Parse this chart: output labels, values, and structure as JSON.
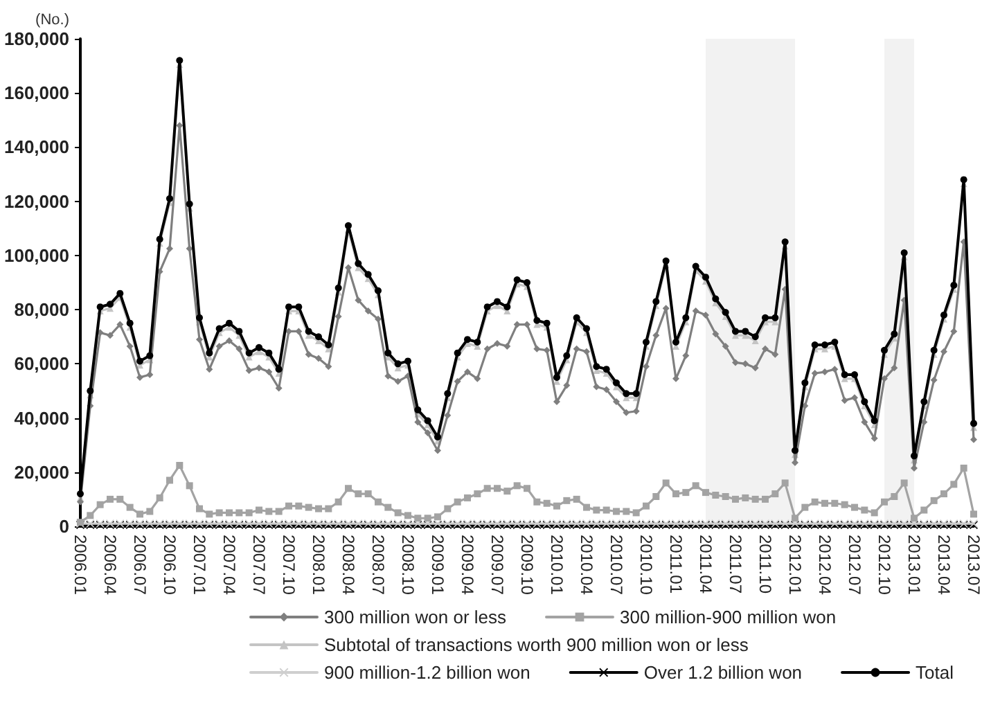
{
  "chart_data": {
    "type": "line",
    "ylabel": "(No.)",
    "categories": [
      "2006.01",
      null,
      null,
      "2006.04",
      null,
      null,
      "2006.07",
      null,
      null,
      "2006.10",
      null,
      null,
      "2007.01",
      null,
      null,
      "2007.04",
      null,
      null,
      "2007.07",
      null,
      null,
      "2007.10",
      null,
      null,
      "2008.01",
      null,
      null,
      "2008.04",
      null,
      null,
      "2008.07",
      null,
      null,
      "2008.10",
      null,
      null,
      "2009.01",
      null,
      null,
      "2009.04",
      null,
      null,
      "2009.07",
      null,
      null,
      "2009.10",
      null,
      null,
      "2010.01",
      null,
      null,
      "2010.04",
      null,
      null,
      "2010.07",
      null,
      null,
      "2010.10",
      null,
      null,
      "2011.01",
      null,
      null,
      "2011.04",
      null,
      null,
      "2011.07",
      null,
      null,
      "2011.10",
      null,
      null,
      "2012.01",
      null,
      null,
      "2012.04",
      null,
      null,
      "2012.07",
      null,
      null,
      "2012.10",
      null,
      null,
      "2013.01",
      null,
      null,
      "2013.04",
      null,
      null,
      "2013.07"
    ],
    "series": [
      {
        "name": "300 million won or less",
        "color": "#7f7f7f",
        "marker": "diamond",
        "values": [
          9000,
          44500,
          71500,
          70500,
          74500,
          66500,
          55000,
          56000,
          94000,
          102500,
          148000,
          102500,
          69000,
          58000,
          66500,
          68500,
          65500,
          57500,
          58500,
          57000,
          51000,
          72000,
          72000,
          63500,
          62000,
          59000,
          77500,
          95500,
          83500,
          79500,
          76500,
          55500,
          53500,
          55500,
          38500,
          34500,
          28000,
          41000,
          53500,
          57000,
          54500,
          65500,
          67500,
          66500,
          74500,
          74500,
          65500,
          65000,
          46000,
          52000,
          65500,
          64500,
          51500,
          50500,
          46000,
          42000,
          42500,
          59000,
          70500,
          80500,
          54500,
          63000,
          79500,
          78000,
          71000,
          66500,
          60500,
          60000,
          58500,
          65500,
          63500,
          87500,
          23500,
          44500,
          56500,
          57000,
          58000,
          46500,
          47500,
          38500,
          32500,
          54500,
          58500,
          83500,
          21500,
          38500,
          54000,
          64500,
          72000,
          105000,
          32000
        ]
      },
      {
        "name": "300 million-900 million won",
        "color": "#a3a3a3",
        "marker": "square",
        "values": [
          1500,
          4000,
          8000,
          10000,
          10000,
          7000,
          4500,
          5500,
          10500,
          17000,
          22500,
          15000,
          6500,
          4500,
          5000,
          5000,
          5000,
          5000,
          6000,
          5500,
          5500,
          7500,
          7500,
          7000,
          6500,
          6500,
          9000,
          14000,
          12000,
          12000,
          9000,
          7000,
          5000,
          4000,
          3000,
          3000,
          3500,
          6500,
          9000,
          10500,
          12000,
          14000,
          14000,
          13000,
          15000,
          14000,
          9000,
          8500,
          7500,
          9500,
          10000,
          7000,
          6000,
          6000,
          5500,
          5500,
          5000,
          7500,
          11000,
          16000,
          12000,
          12500,
          15000,
          12500,
          11500,
          11000,
          10000,
          10500,
          10000,
          10000,
          12000,
          16000,
          3000,
          7000,
          9000,
          8500,
          8500,
          8000,
          7000,
          6000,
          5000,
          9000,
          11000,
          16000,
          3000,
          6000,
          9500,
          12000,
          15500,
          21500,
          4500
        ]
      },
      {
        "name": "Subtotal of transactions worth 900 million won or less",
        "color": "#c4c4c4",
        "marker": "triangle",
        "values": [
          10500,
          48500,
          79500,
          80500,
          84500,
          73500,
          59500,
          61500,
          104500,
          119500,
          170500,
          117500,
          75500,
          62500,
          71500,
          73500,
          70500,
          62500,
          64500,
          62500,
          56500,
          79500,
          79500,
          70500,
          68500,
          65500,
          86500,
          109500,
          95500,
          91500,
          85500,
          62500,
          58500,
          59500,
          41500,
          37500,
          31500,
          47500,
          62500,
          67500,
          66500,
          79500,
          81500,
          79500,
          89500,
          88500,
          74500,
          73500,
          53500,
          61500,
          75500,
          71500,
          57500,
          56500,
          51500,
          47500,
          47500,
          66500,
          81500,
          96500,
          66500,
          75500,
          94500,
          90500,
          82500,
          77500,
          70500,
          70500,
          68500,
          75500,
          75500,
          103500,
          26500,
          51500,
          65500,
          65500,
          66500,
          54500,
          54500,
          44500,
          37500,
          63500,
          69500,
          99500,
          24500,
          44500,
          63500,
          76500,
          87500,
          126500,
          36500
        ]
      },
      {
        "name": "900 million-1.2 billion won",
        "color": "#cfcfcf",
        "marker": "cross",
        "values": [
          1000,
          1000,
          1000,
          1000,
          1000,
          1000,
          1000,
          1000,
          1000,
          1000,
          1000,
          1000,
          1000,
          1000,
          1000,
          1000,
          1000,
          1000,
          1000,
          1000,
          1000,
          1000,
          1000,
          1000,
          1000,
          1000,
          1000,
          1000,
          1000,
          1000,
          1000,
          1000,
          1000,
          1000,
          1000,
          1000,
          1000,
          1000,
          1000,
          1000,
          1000,
          1000,
          1000,
          1000,
          1000,
          1000,
          1000,
          1000,
          1000,
          1000,
          1000,
          1000,
          1000,
          1000,
          1000,
          1000,
          1000,
          1000,
          1000,
          1000,
          1000,
          1000,
          1000,
          1000,
          1000,
          1000,
          1000,
          1000,
          1000,
          1000,
          1000,
          1000,
          1000,
          1000,
          1000,
          1000,
          1000,
          1000,
          1000,
          1000,
          1000,
          1000,
          1000,
          1000,
          1000,
          1000,
          1000,
          1000,
          1000,
          1000,
          1000
        ]
      },
      {
        "name": "Over 1.2 billion won",
        "color": "#000000",
        "marker": "cross",
        "values": [
          500,
          500,
          500,
          500,
          500,
          500,
          500,
          500,
          500,
          500,
          500,
          500,
          500,
          500,
          500,
          500,
          500,
          500,
          500,
          500,
          500,
          500,
          500,
          500,
          500,
          500,
          500,
          500,
          500,
          500,
          500,
          500,
          500,
          500,
          500,
          500,
          500,
          500,
          500,
          500,
          500,
          500,
          500,
          500,
          500,
          500,
          500,
          500,
          500,
          500,
          500,
          500,
          500,
          500,
          500,
          500,
          500,
          500,
          500,
          500,
          500,
          500,
          500,
          500,
          500,
          500,
          500,
          500,
          500,
          500,
          500,
          500,
          500,
          500,
          500,
          500,
          500,
          500,
          500,
          500,
          500,
          500,
          500,
          500,
          500,
          500,
          500,
          500,
          500,
          500,
          500
        ]
      },
      {
        "name": "Total",
        "color": "#000000",
        "marker": "circle",
        "values": [
          12000,
          50000,
          81000,
          82000,
          86000,
          75000,
          61000,
          63000,
          106000,
          121000,
          172000,
          119000,
          77000,
          64000,
          73000,
          75000,
          72000,
          64000,
          66000,
          64000,
          58000,
          81000,
          81000,
          72000,
          70000,
          67000,
          88000,
          111000,
          97000,
          93000,
          87000,
          64000,
          60000,
          61000,
          43000,
          39000,
          33000,
          49000,
          64000,
          69000,
          68000,
          81000,
          83000,
          81000,
          91000,
          90000,
          76000,
          75000,
          55000,
          63000,
          77000,
          73000,
          59000,
          58000,
          53000,
          49000,
          49000,
          68000,
          83000,
          98000,
          68000,
          77000,
          96000,
          92000,
          84000,
          79000,
          72000,
          72000,
          70000,
          77000,
          77000,
          105000,
          28000,
          53000,
          67000,
          67000,
          68000,
          56000,
          56000,
          46000,
          39000,
          65000,
          71000,
          101000,
          26000,
          46000,
          65000,
          78000,
          89000,
          128000,
          38000
        ]
      }
    ],
    "ylim": [
      0,
      180000
    ],
    "yticks": [
      0,
      {
        "value": 20000,
        "label": "20,000"
      },
      {
        "value": 40000,
        "label": "40,000"
      },
      {
        "value": 60000,
        "label": "60,000"
      },
      {
        "value": 80000,
        "label": "80,000"
      },
      {
        "value": 100000,
        "label": "100,000"
      },
      {
        "value": 120000,
        "label": "120,000"
      },
      {
        "value": 140000,
        "label": "140,000"
      },
      {
        "value": 160000,
        "label": "160,000"
      },
      {
        "value": 180000,
        "label": "180,000"
      }
    ],
    "bands": [
      {
        "axis": "x",
        "from": "2011.04",
        "to": "2012.01",
        "color": "#f2f2f2"
      },
      {
        "axis": "x",
        "from": "2012.10",
        "to": "2013.01",
        "color": "#f2f2f2"
      }
    ],
    "grid": false,
    "legend": "bottom"
  }
}
